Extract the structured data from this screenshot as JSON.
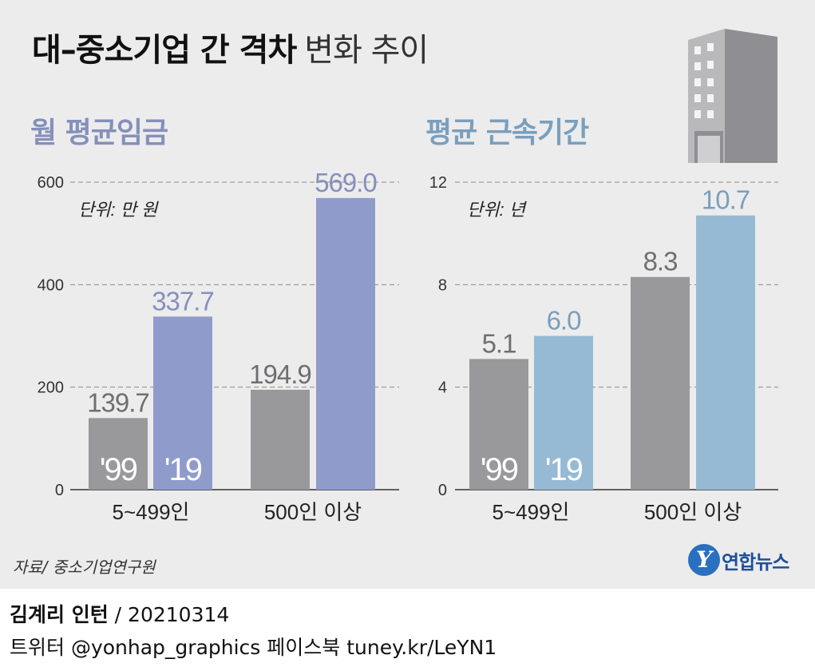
{
  "title": {
    "bold": "대–중소기업 간 격차",
    "light": "변화 추이"
  },
  "colors": {
    "gray": "#99999c",
    "wage_19": "#8f9ccb",
    "tenure_19": "#96bad3",
    "wage_head": "#8590bb",
    "tenure_head": "#7a9fbd",
    "bg": "#ececec"
  },
  "chart_data": [
    {
      "type": "bar",
      "title": "월 평균임금",
      "unit_label": "단위: 만 원",
      "categories": [
        "5~499인",
        "500인 이상"
      ],
      "series": [
        {
          "name": "'99",
          "values": [
            139.7,
            194.9
          ]
        },
        {
          "name": "'19",
          "values": [
            337.7,
            569.0
          ]
        }
      ],
      "value_labels": [
        [
          "139.7",
          "194.9"
        ],
        [
          "337.7",
          "569.0"
        ]
      ],
      "yticks": [
        "0",
        "200",
        "400",
        "600"
      ],
      "ylim": [
        0,
        600
      ],
      "grid": "dashed"
    },
    {
      "type": "bar",
      "title": "평균 근속기간",
      "unit_label": "단위: 년",
      "categories": [
        "5~499인",
        "500인 이상"
      ],
      "series": [
        {
          "name": "'99",
          "values": [
            5.1,
            8.3
          ]
        },
        {
          "name": "'19",
          "values": [
            6.0,
            10.7
          ]
        }
      ],
      "value_labels": [
        [
          "5.1",
          "8.3"
        ],
        [
          "6.0",
          "10.7"
        ]
      ],
      "yticks": [
        "0",
        "4",
        "8",
        "12"
      ],
      "ylim": [
        0,
        12
      ],
      "grid": "dashed"
    }
  ],
  "source": "자료/ 중소기업연구원",
  "logo": {
    "mark": "Y",
    "text": "연합뉴스"
  },
  "credits": {
    "author": "김계리 인턴",
    "date": " / 20210314",
    "social": "트위터 @yonhap_graphics  페이스북 tuney.kr/LeYN1"
  }
}
